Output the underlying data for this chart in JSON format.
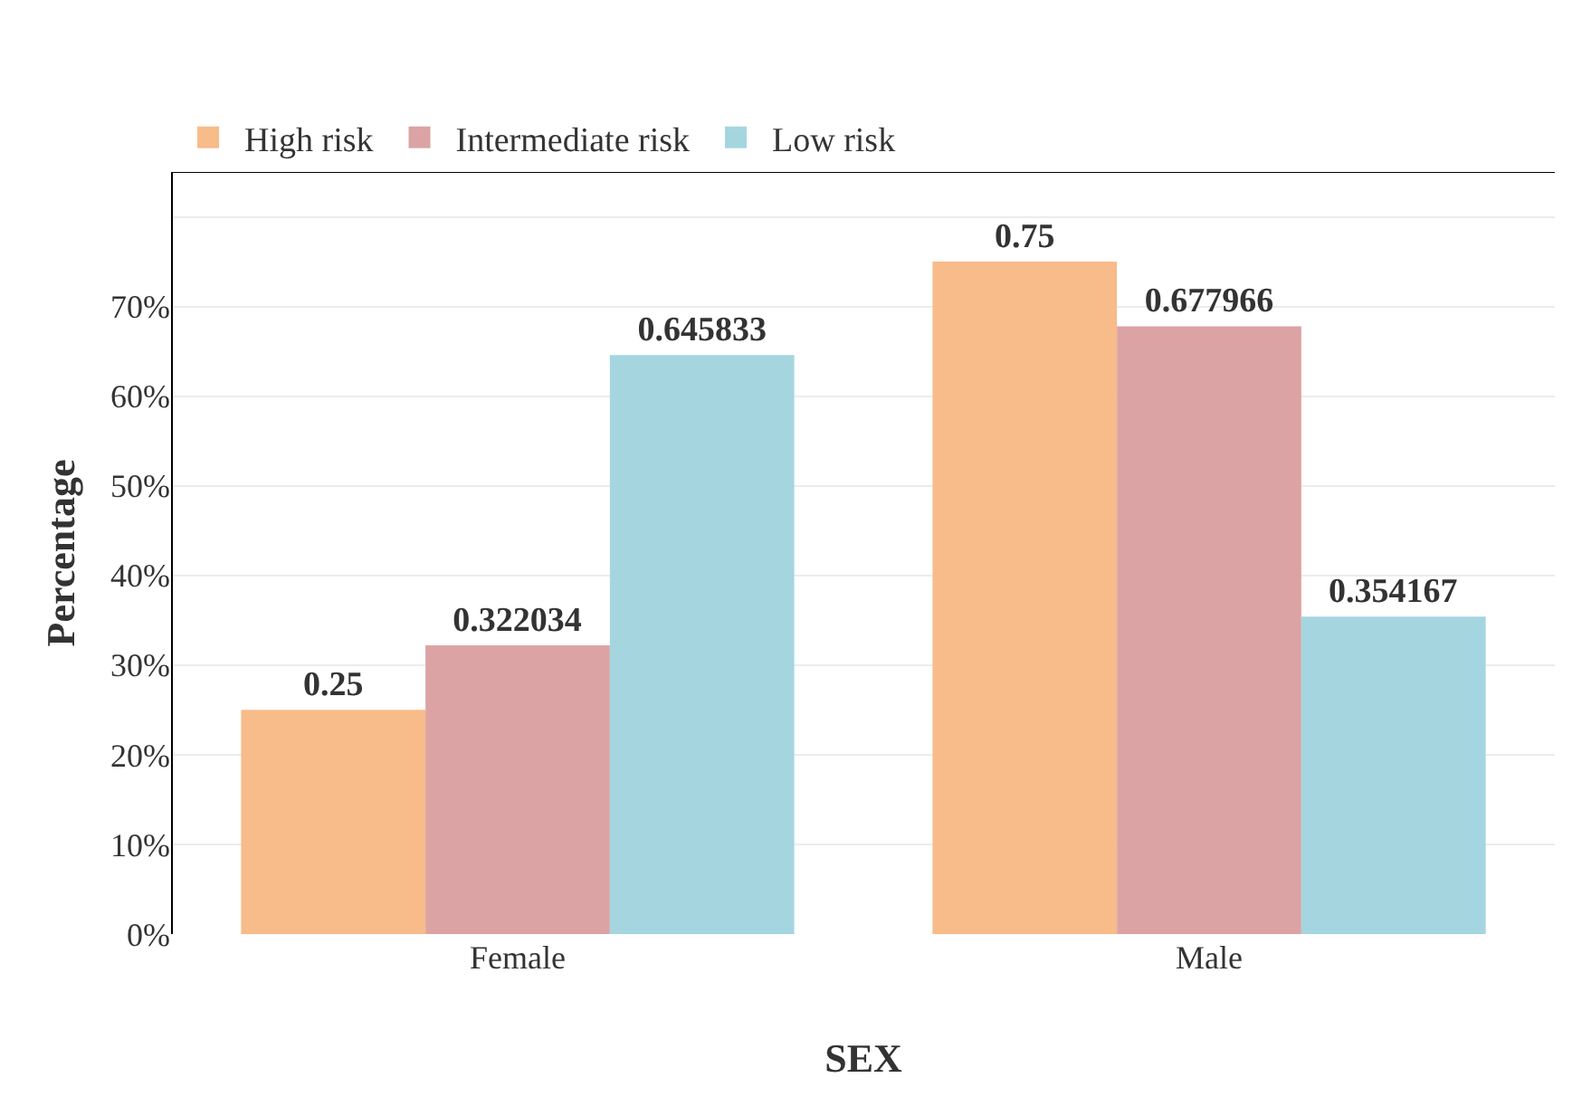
{
  "chart_data": {
    "type": "bar",
    "xlabel": "SEX",
    "ylabel": "Percentage",
    "categories": [
      "Female",
      "Male"
    ],
    "series": [
      {
        "name": "High risk",
        "color": "#f8bb8a",
        "values": [
          0.25,
          0.75
        ]
      },
      {
        "name": "Intermediate risk",
        "color": "#dba3a3",
        "values": [
          0.322034,
          0.677966
        ]
      },
      {
        "name": "Low risk",
        "color": "#a5d6e0",
        "values": [
          0.645833,
          0.354167
        ]
      }
    ],
    "ylim": [
      0,
      0.85
    ],
    "yticks": [
      {
        "value": 0,
        "label": "0%"
      },
      {
        "value": 0.1,
        "label": "10%"
      },
      {
        "value": 0.2,
        "label": "20%"
      },
      {
        "value": 0.3,
        "label": "30%"
      },
      {
        "value": 0.4,
        "label": "40%"
      },
      {
        "value": 0.5,
        "label": "50%"
      },
      {
        "value": 0.6,
        "label": "60%"
      },
      {
        "value": 0.7,
        "label": "70%"
      },
      {
        "value": 0.8,
        "label": null
      }
    ],
    "grid": "y",
    "legend": "top left",
    "data_labels": true
  }
}
